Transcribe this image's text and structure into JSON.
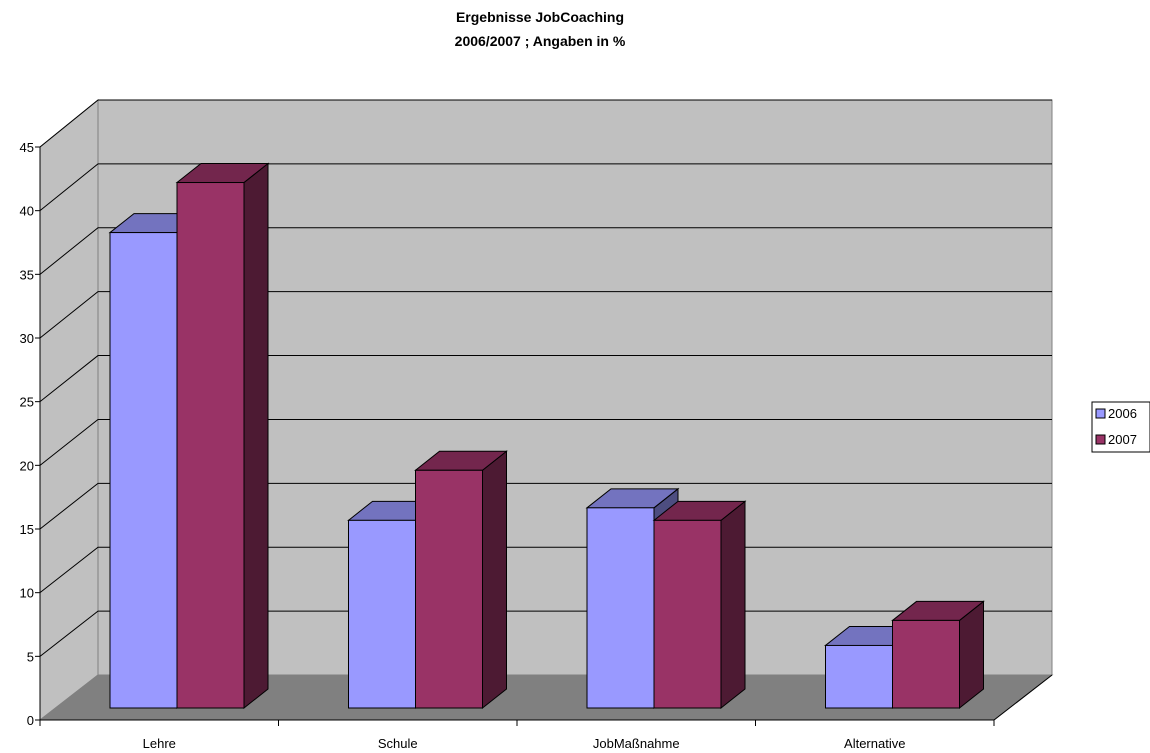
{
  "chart_data": {
    "type": "bar",
    "title": "Ergebnisse JobCoaching",
    "subtitle": "2006/2007 ; Angaben in %",
    "categories": [
      "Lehre",
      "Schule",
      "JobMaßnahme",
      "Alternative"
    ],
    "series": [
      {
        "name": "2006",
        "values": [
          38,
          15,
          16,
          5
        ],
        "color": "#9999ff"
      },
      {
        "name": "2007",
        "values": [
          42,
          19,
          15,
          7
        ],
        "color": "#993366"
      }
    ],
    "ylim": [
      0,
      45
    ],
    "yticks": [
      0,
      5,
      10,
      15,
      20,
      25,
      30,
      35,
      40,
      45
    ],
    "grid": true,
    "legend_position": "right",
    "three_d": true,
    "colors": {
      "wall": "#c0c0c0",
      "floor": "#808080"
    }
  }
}
